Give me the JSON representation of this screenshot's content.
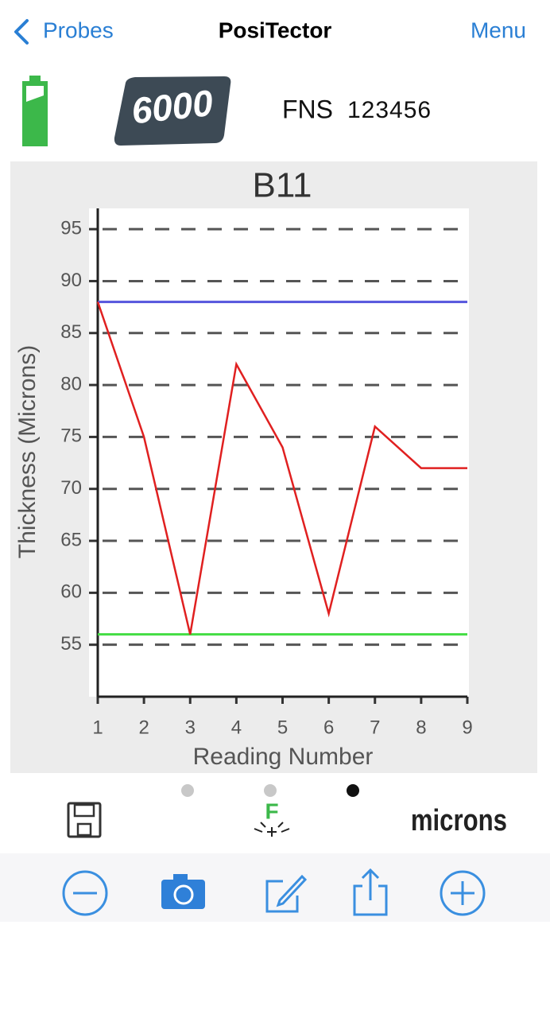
{
  "nav": {
    "back": "Probes",
    "title": "PosiTector",
    "menu": "Menu"
  },
  "device": {
    "model": "6000",
    "probe": "FNS",
    "serial": "123456"
  },
  "units": "microns",
  "flash_icon_label": "F",
  "chart_data": {
    "type": "line",
    "title": "B11",
    "x_label": "Reading Number",
    "y_label": "Thickness (Microns)",
    "x": [
      1,
      2,
      3,
      4,
      5,
      6,
      7,
      8,
      9
    ],
    "series": [
      {
        "color": "#e02020",
        "values": [
          88,
          75,
          56,
          82,
          74,
          58,
          76,
          72,
          72
        ]
      }
    ],
    "high_limit": 88,
    "high_limit_color": "#5555dd",
    "low_limit": 56,
    "low_limit_color": "#44dd44",
    "xlim": [
      1,
      9
    ],
    "xticks": [
      1,
      2,
      3,
      4,
      5,
      6,
      7,
      8,
      9
    ],
    "ylim": [
      50,
      97
    ],
    "yticks": [
      55,
      60,
      65,
      70,
      75,
      80,
      85,
      90,
      95
    ],
    "grid": true
  }
}
